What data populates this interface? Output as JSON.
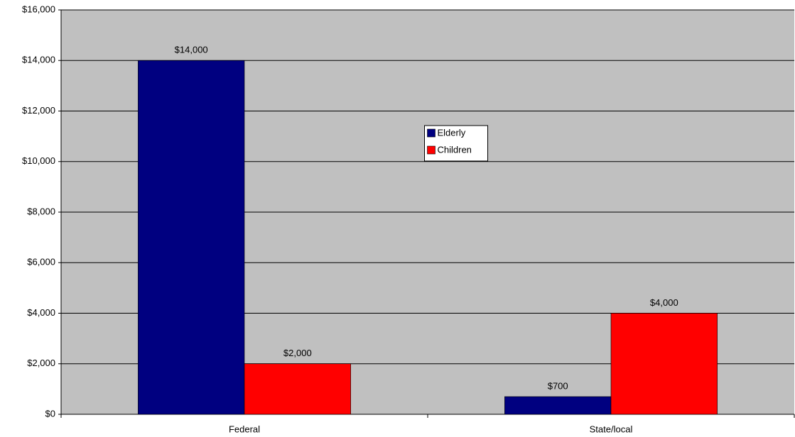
{
  "chart_data": {
    "type": "bar",
    "categories": [
      "Federal",
      "State/local"
    ],
    "series": [
      {
        "name": "Elderly",
        "color": "#000080",
        "values": [
          14000,
          700
        ],
        "value_labels": [
          "$14,000",
          "$700"
        ]
      },
      {
        "name": "Children",
        "color": "#ff0000",
        "values": [
          2000,
          4000
        ],
        "value_labels": [
          "$2,000",
          "$4,000"
        ]
      }
    ],
    "ylim": [
      0,
      16000
    ],
    "yticks": [
      {
        "value": 0,
        "label": "$0"
      },
      {
        "value": 2000,
        "label": "$2,000"
      },
      {
        "value": 4000,
        "label": "$4,000"
      },
      {
        "value": 6000,
        "label": "$6,000"
      },
      {
        "value": 8000,
        "label": "$8,000"
      },
      {
        "value": 10000,
        "label": "$10,000"
      },
      {
        "value": 12000,
        "label": "$12,000"
      },
      {
        "value": 14000,
        "label": "$14,000"
      },
      {
        "value": 16000,
        "label": "$16,000"
      }
    ],
    "grid": true,
    "legend": "center",
    "background": "#c0c0c0"
  }
}
